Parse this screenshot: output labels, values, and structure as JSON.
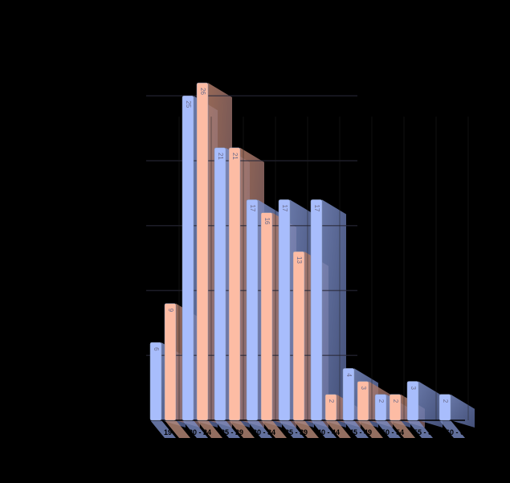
{
  "chart_data": {
    "type": "bar",
    "style": "3d-grouped-bar",
    "title": "",
    "xlabel": "",
    "ylabel": "",
    "categories": [
      "15 - 19",
      "20 - 24",
      "25 - 29",
      "30 - 34",
      "35 - 39",
      "40 - 44",
      "45 - 49",
      "50 - 54",
      "55 - 59",
      "60 - 64"
    ],
    "category_labels_visible": [
      "19",
      "20 - 24",
      "25 - 29",
      "30 - 34",
      "35 - 39",
      "40 - 44",
      "45 - 49",
      "50 - 54",
      "55 - 59",
      "60 - 64"
    ],
    "series": [
      {
        "name": "Series 1",
        "color": "#a8bdfc",
        "values": [
          6,
          25,
          21,
          17,
          17,
          17,
          4,
          2,
          3,
          2
        ]
      },
      {
        "name": "Series 2",
        "color": "#fdbca4",
        "values": [
          9,
          26,
          21,
          16,
          13,
          2,
          3,
          2,
          null,
          null
        ]
      }
    ],
    "ylim": [
      0,
      26
    ],
    "grid": true,
    "gridline_values": [
      5,
      10,
      15,
      20,
      25
    ],
    "legend": "none",
    "data_labels": true,
    "background": "#000000"
  }
}
